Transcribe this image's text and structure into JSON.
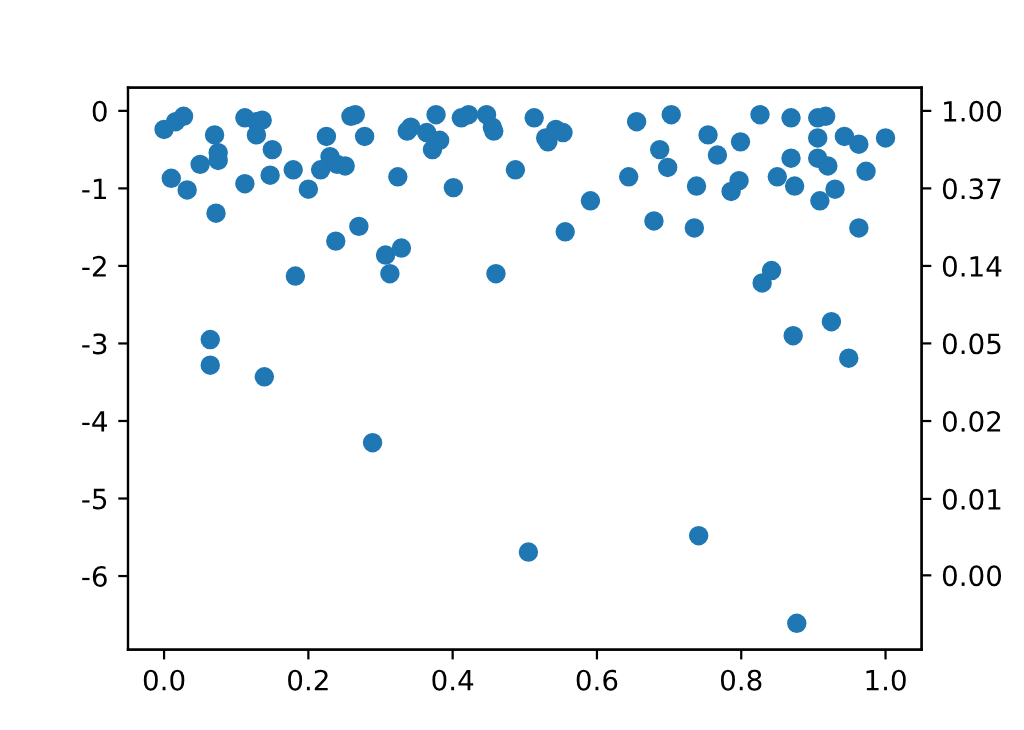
{
  "chart_data": {
    "type": "scatter",
    "color": "#1f77b4",
    "marker": "circle",
    "grid": false,
    "x": [
      0.0,
      0.01,
      0.016,
      0.027,
      0.032,
      0.05,
      0.064,
      0.064,
      0.07,
      0.072,
      0.075,
      0.075,
      0.112,
      0.112,
      0.128,
      0.128,
      0.136,
      0.139,
      0.147,
      0.15,
      0.179,
      0.182,
      0.2,
      0.217,
      0.225,
      0.23,
      0.238,
      0.24,
      0.251,
      0.259,
      0.265,
      0.27,
      0.278,
      0.289,
      0.307,
      0.313,
      0.324,
      0.329,
      0.337,
      0.342,
      0.364,
      0.372,
      0.377,
      0.382,
      0.401,
      0.412,
      0.422,
      0.447,
      0.455,
      0.457,
      0.46,
      0.487,
      0.505,
      0.513,
      0.529,
      0.532,
      0.543,
      0.553,
      0.556,
      0.591,
      0.644,
      0.655,
      0.679,
      0.687,
      0.698,
      0.703,
      0.735,
      0.738,
      0.741,
      0.754,
      0.767,
      0.786,
      0.797,
      0.799,
      0.826,
      0.829,
      0.842,
      0.85,
      0.869,
      0.869,
      0.872,
      0.874,
      0.877,
      0.906,
      0.906,
      0.906,
      0.909,
      0.917,
      0.92,
      0.925,
      0.93,
      0.943,
      0.949,
      0.963,
      0.963,
      0.973,
      1.0
    ],
    "values": [
      -0.24,
      -0.87,
      -0.14,
      -0.07,
      -1.02,
      -0.69,
      -2.95,
      -3.28,
      -0.31,
      -1.32,
      -0.54,
      -0.64,
      -0.94,
      -0.09,
      -0.14,
      -0.31,
      -0.12,
      -3.43,
      -0.83,
      -0.5,
      -0.76,
      -2.13,
      -1.01,
      -0.76,
      -0.33,
      -0.59,
      -1.68,
      -0.69,
      -0.71,
      -0.07,
      -0.05,
      -1.49,
      -0.33,
      -4.28,
      -1.86,
      -2.1,
      -0.85,
      -1.77,
      -0.26,
      -0.21,
      -0.28,
      -0.5,
      -0.05,
      -0.38,
      -0.99,
      -0.09,
      -0.05,
      -0.05,
      -0.21,
      -0.26,
      -2.1,
      -0.76,
      -5.69,
      -0.09,
      -0.35,
      -0.4,
      -0.24,
      -0.28,
      -1.56,
      -1.16,
      -0.85,
      -0.14,
      -1.42,
      -0.5,
      -0.73,
      -0.05,
      -1.51,
      -0.97,
      -5.48,
      -0.31,
      -0.57,
      -1.04,
      -0.9,
      -0.4,
      -0.05,
      -2.22,
      -2.06,
      -0.85,
      -0.09,
      -0.61,
      -2.9,
      -0.97,
      -6.61,
      -0.09,
      -0.35,
      -0.61,
      -1.16,
      -0.07,
      -0.71,
      -2.72,
      -1.01,
      -0.33,
      -3.19,
      -1.51,
      -0.43,
      -0.78,
      -0.35
    ],
    "xlim": [
      -0.05,
      1.05
    ],
    "xticks": [
      {
        "value": 0,
        "label": "0.0"
      },
      0.2,
      0.4,
      0.6,
      0.8,
      {
        "value": 1,
        "label": "1.0"
      }
    ],
    "log": "y2",
    "ylim": [
      -6.95,
      0.3
    ],
    "yticks": [
      -6,
      -5,
      -4,
      -3,
      -2,
      -1,
      0
    ],
    "y2lim": [
      0.000958,
      1.35
    ],
    "y2ticks": [
      {
        "value": 1,
        "label": "1.00"
      },
      {
        "value": 0.3679,
        "label": "0.37"
      },
      {
        "value": 0.1353,
        "label": "0.14"
      },
      {
        "value": 0.0498,
        "label": "0.05"
      },
      {
        "value": 0.0183,
        "label": "0.02"
      },
      {
        "value": 0.0067,
        "label": "0.01"
      },
      {
        "value": 0.0025,
        "label": "0.00"
      }
    ]
  }
}
